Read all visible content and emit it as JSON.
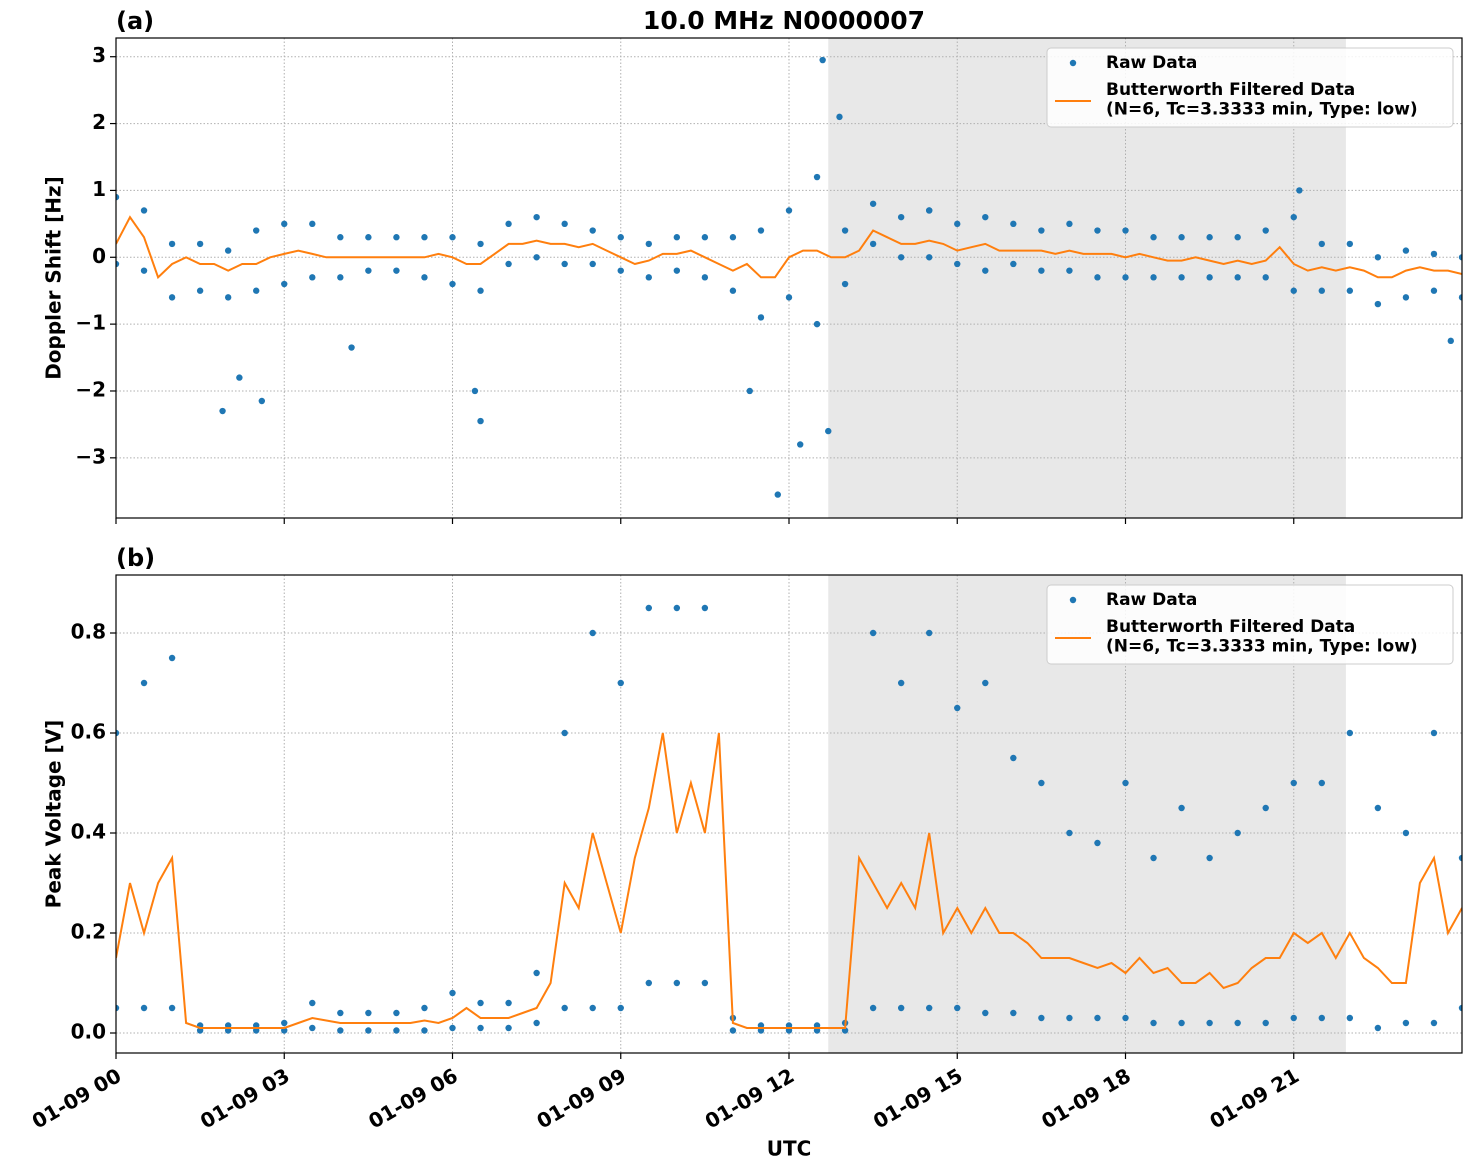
{
  "chart_data": [
    {
      "type": "line",
      "title": "10.0 MHz N0000007",
      "panel_label": "(a)",
      "ylabel": "Doppler Shift [Hz]",
      "xlim": [
        0,
        24
      ],
      "ylim": [
        -3.9,
        3.28
      ],
      "xticks": [
        0,
        3,
        6,
        9,
        12,
        15,
        18,
        21
      ],
      "show_xticklabels": false,
      "yticks": [
        {
          "value": -3,
          "label": "−3"
        },
        {
          "value": -2,
          "label": "−2"
        },
        {
          "value": -1,
          "label": "−1"
        },
        0,
        1,
        2,
        3
      ],
      "grid": true,
      "shade": [
        12.7,
        21.93
      ],
      "legend": "upper right",
      "series": [
        {
          "name": "Raw Data",
          "color": "#1f77b4",
          "style": "markers",
          "x": [
            0,
            0,
            0.5,
            0.5,
            1,
            1,
            1.5,
            1.5,
            2,
            2,
            2.5,
            2.5,
            3,
            3,
            3.5,
            3.5,
            4,
            4,
            4.5,
            4.5,
            5,
            5,
            5.5,
            5.5,
            6,
            6,
            6.5,
            6.5,
            7,
            7,
            7.5,
            7.5,
            8,
            8,
            8.5,
            8.5,
            9,
            9,
            9.5,
            9.5,
            10,
            10,
            10.5,
            10.5,
            11,
            11,
            11.5,
            11.5,
            12,
            12,
            12.5,
            12.5,
            13,
            13,
            13.5,
            13.5,
            14,
            14,
            14.5,
            14.5,
            15,
            15,
            15.5,
            15.5,
            16,
            16,
            16.5,
            16.5,
            17,
            17,
            17.5,
            17.5,
            18,
            18,
            18.5,
            18.5,
            19,
            19,
            19.5,
            19.5,
            20,
            20,
            20.5,
            20.5,
            21,
            21,
            21.5,
            21.5,
            22,
            22,
            22.5,
            22.5,
            23,
            23,
            23.5,
            23.5,
            24,
            24,
            1.9,
            2.2,
            2.6,
            6.4,
            6.5,
            11.3,
            11.8,
            12.2,
            12.6,
            12.9,
            12.7,
            14.5,
            21.1,
            23.8,
            4.2
          ],
          "values": [
            0.9,
            -0.1,
            0.7,
            -0.2,
            0.2,
            -0.6,
            0.2,
            -0.5,
            0.1,
            -0.6,
            0.4,
            -0.5,
            0.5,
            -0.4,
            0.5,
            -0.3,
            0.3,
            -0.3,
            0.3,
            -0.2,
            0.3,
            -0.2,
            0.3,
            -0.3,
            0.3,
            -0.4,
            0.2,
            -0.5,
            0.5,
            -0.1,
            0.6,
            0,
            0.5,
            -0.1,
            0.4,
            -0.1,
            0.3,
            -0.2,
            0.2,
            -0.3,
            0.3,
            -0.2,
            0.3,
            -0.3,
            0.3,
            -0.5,
            0.4,
            -0.9,
            0.7,
            -0.6,
            1.2,
            -1,
            0.4,
            -0.4,
            0.8,
            0.2,
            0.6,
            0,
            0.7,
            0,
            0.5,
            -0.1,
            0.6,
            -0.2,
            0.5,
            -0.1,
            0.4,
            -0.2,
            0.5,
            -0.2,
            0.4,
            -0.3,
            0.4,
            -0.3,
            0.3,
            -0.3,
            0.3,
            -0.3,
            0.3,
            -0.3,
            0.3,
            -0.3,
            0.4,
            -0.3,
            0.6,
            -0.5,
            0.2,
            -0.5,
            0.2,
            -0.5,
            0,
            -0.7,
            0.1,
            -0.6,
            0.05,
            -0.5,
            0,
            -0.6,
            -2.3,
            -1.8,
            -2.15,
            -2.0,
            -2.45,
            -2.0,
            -3.55,
            -2.8,
            2.95,
            2.1,
            -2.6,
            0.7,
            1.0,
            -1.25,
            -1.35
          ]
        },
        {
          "name": "Butterworth Filtered Data\n(N=6, Tc=3.3333 min, Type: low)",
          "color": "#ff7f0e",
          "style": "line",
          "x": [
            0,
            0.25,
            0.5,
            0.75,
            1,
            1.25,
            1.5,
            1.75,
            2,
            2.25,
            2.5,
            2.75,
            3,
            3.25,
            3.5,
            3.75,
            4,
            4.25,
            4.5,
            4.75,
            5,
            5.25,
            5.5,
            5.75,
            6,
            6.25,
            6.5,
            6.75,
            7,
            7.25,
            7.5,
            7.75,
            8,
            8.25,
            8.5,
            8.75,
            9,
            9.25,
            9.5,
            9.75,
            10,
            10.25,
            10.5,
            10.75,
            11,
            11.25,
            11.5,
            11.75,
            12,
            12.25,
            12.5,
            12.75,
            13,
            13.25,
            13.5,
            13.75,
            14,
            14.25,
            14.5,
            14.75,
            15,
            15.25,
            15.5,
            15.75,
            16,
            16.25,
            16.5,
            16.75,
            17,
            17.25,
            17.5,
            17.75,
            18,
            18.25,
            18.5,
            18.75,
            19,
            19.25,
            19.5,
            19.75,
            20,
            20.25,
            20.5,
            20.75,
            21,
            21.25,
            21.5,
            21.75,
            22,
            22.25,
            22.5,
            22.75,
            23,
            23.25,
            23.5,
            23.75,
            24
          ],
          "values": [
            0.2,
            0.6,
            0.3,
            -0.3,
            -0.1,
            0,
            -0.1,
            -0.1,
            -0.2,
            -0.1,
            -0.1,
            0,
            0.05,
            0.1,
            0.05,
            0,
            0,
            0,
            0,
            0,
            0,
            0,
            0,
            0.05,
            0,
            -0.1,
            -0.1,
            0.05,
            0.2,
            0.2,
            0.25,
            0.2,
            0.2,
            0.15,
            0.2,
            0.1,
            0,
            -0.1,
            -0.05,
            0.05,
            0.05,
            0.1,
            0,
            -0.1,
            -0.2,
            -0.1,
            -0.3,
            -0.3,
            0,
            0.1,
            0.1,
            0,
            0,
            0.1,
            0.4,
            0.3,
            0.2,
            0.2,
            0.25,
            0.2,
            0.1,
            0.15,
            0.2,
            0.1,
            0.1,
            0.1,
            0.1,
            0.05,
            0.1,
            0.05,
            0.05,
            0.05,
            0,
            0.05,
            0,
            -0.05,
            -0.05,
            0,
            -0.05,
            -0.1,
            -0.05,
            -0.1,
            -0.05,
            0.15,
            -0.1,
            -0.2,
            -0.15,
            -0.2,
            -0.15,
            -0.2,
            -0.3,
            -0.3,
            -0.2,
            -0.15,
            -0.2,
            -0.2,
            -0.25
          ]
        }
      ]
    },
    {
      "type": "line",
      "panel_label": "(b)",
      "ylabel": "Peak Voltage [V]",
      "xlabel": "UTC",
      "xlim": [
        0,
        24
      ],
      "ylim": [
        -0.04,
        0.916
      ],
      "xticks": [
        {
          "value": 0,
          "label": "01-09 00"
        },
        {
          "value": 3,
          "label": "01-09 03"
        },
        {
          "value": 6,
          "label": "01-09 06"
        },
        {
          "value": 9,
          "label": "01-09 09"
        },
        {
          "value": 12,
          "label": "01-09 12"
        },
        {
          "value": 15,
          "label": "01-09 15"
        },
        {
          "value": 18,
          "label": "01-09 18"
        },
        {
          "value": 21,
          "label": "01-09 21"
        }
      ],
      "show_xticklabels": true,
      "yticks": [
        {
          "value": 0,
          "label": "0.0"
        },
        0.2,
        0.4,
        0.6,
        0.8
      ],
      "grid": true,
      "shade": [
        12.7,
        21.93
      ],
      "legend": "upper right",
      "series": [
        {
          "name": "Raw Data",
          "color": "#1f77b4",
          "style": "markers",
          "x": [
            0,
            0,
            0.5,
            0.5,
            1,
            1,
            1.5,
            1.5,
            2,
            2,
            2.5,
            2.5,
            3,
            3,
            3.5,
            3.5,
            4,
            4,
            4.5,
            4.5,
            5,
            5,
            5.5,
            5.5,
            6,
            6,
            6.5,
            6.5,
            7,
            7,
            7.5,
            7.5,
            8,
            8,
            8.5,
            8.5,
            9,
            9,
            9.5,
            9.5,
            10,
            10,
            10.5,
            10.5,
            11,
            11,
            11.5,
            11.5,
            12,
            12,
            12.5,
            12.5,
            13,
            13,
            13.5,
            13.5,
            14,
            14,
            14.5,
            14.5,
            15,
            15,
            15.5,
            15.5,
            16,
            16,
            16.5,
            16.5,
            17,
            17,
            17.5,
            17.5,
            18,
            18,
            18.5,
            18.5,
            19,
            19,
            19.5,
            19.5,
            20,
            20,
            20.5,
            20.5,
            21,
            21,
            21.5,
            21.5,
            22,
            22,
            22.5,
            22.5,
            23,
            23,
            23.5,
            23.5,
            24,
            24
          ],
          "values": [
            0.6,
            0.05,
            0.7,
            0.05,
            0.75,
            0.05,
            0.015,
            0.005,
            0.015,
            0.005,
            0.015,
            0.005,
            0.02,
            0.005,
            0.06,
            0.01,
            0.04,
            0.005,
            0.04,
            0.005,
            0.04,
            0.005,
            0.05,
            0.005,
            0.08,
            0.01,
            0.06,
            0.01,
            0.06,
            0.01,
            0.12,
            0.02,
            0.6,
            0.05,
            0.8,
            0.05,
            0.7,
            0.05,
            0.85,
            0.1,
            0.85,
            0.1,
            0.85,
            0.1,
            0.03,
            0.005,
            0.015,
            0.005,
            0.015,
            0.005,
            0.015,
            0.005,
            0.02,
            0.005,
            0.8,
            0.05,
            0.7,
            0.05,
            0.8,
            0.05,
            0.65,
            0.05,
            0.7,
            0.04,
            0.55,
            0.04,
            0.5,
            0.03,
            0.4,
            0.03,
            0.38,
            0.03,
            0.5,
            0.03,
            0.35,
            0.02,
            0.45,
            0.02,
            0.35,
            0.02,
            0.4,
            0.02,
            0.45,
            0.02,
            0.5,
            0.03,
            0.5,
            0.03,
            0.6,
            0.03,
            0.45,
            0.01,
            0.4,
            0.02,
            0.6,
            0.02,
            0.35,
            0.05
          ]
        },
        {
          "name": "Butterworth Filtered Data\n(N=6, Tc=3.3333 min, Type: low)",
          "color": "#ff7f0e",
          "style": "line",
          "x": [
            0,
            0.25,
            0.5,
            0.75,
            1,
            1.25,
            1.5,
            1.75,
            2,
            2.25,
            2.5,
            2.75,
            3,
            3.25,
            3.5,
            3.75,
            4,
            4.25,
            4.5,
            4.75,
            5,
            5.25,
            5.5,
            5.75,
            6,
            6.25,
            6.5,
            6.75,
            7,
            7.25,
            7.5,
            7.75,
            8,
            8.25,
            8.5,
            8.75,
            9,
            9.25,
            9.5,
            9.75,
            10,
            10.25,
            10.5,
            10.75,
            11,
            11.25,
            11.5,
            11.75,
            12,
            12.25,
            12.5,
            12.75,
            13,
            13.25,
            13.5,
            13.75,
            14,
            14.25,
            14.5,
            14.75,
            15,
            15.25,
            15.5,
            15.75,
            16,
            16.25,
            16.5,
            16.75,
            17,
            17.25,
            17.5,
            17.75,
            18,
            18.25,
            18.5,
            18.75,
            19,
            19.25,
            19.5,
            19.75,
            20,
            20.25,
            20.5,
            20.75,
            21,
            21.25,
            21.5,
            21.75,
            22,
            22.25,
            22.5,
            22.75,
            23,
            23.25,
            23.5,
            23.75,
            24
          ],
          "values": [
            0.15,
            0.3,
            0.2,
            0.3,
            0.35,
            0.02,
            0.01,
            0.01,
            0.01,
            0.01,
            0.01,
            0.01,
            0.01,
            0.02,
            0.03,
            0.025,
            0.02,
            0.02,
            0.02,
            0.02,
            0.02,
            0.02,
            0.025,
            0.02,
            0.03,
            0.05,
            0.03,
            0.03,
            0.03,
            0.04,
            0.05,
            0.1,
            0.3,
            0.25,
            0.4,
            0.3,
            0.2,
            0.35,
            0.45,
            0.6,
            0.4,
            0.5,
            0.4,
            0.6,
            0.02,
            0.01,
            0.01,
            0.01,
            0.01,
            0.01,
            0.01,
            0.01,
            0.01,
            0.35,
            0.3,
            0.25,
            0.3,
            0.25,
            0.4,
            0.2,
            0.25,
            0.2,
            0.25,
            0.2,
            0.2,
            0.18,
            0.15,
            0.15,
            0.15,
            0.14,
            0.13,
            0.14,
            0.12,
            0.15,
            0.12,
            0.13,
            0.1,
            0.1,
            0.12,
            0.09,
            0.1,
            0.13,
            0.15,
            0.15,
            0.2,
            0.18,
            0.2,
            0.15,
            0.2,
            0.15,
            0.13,
            0.1,
            0.1,
            0.3,
            0.35,
            0.2,
            0.25
          ]
        }
      ]
    }
  ]
}
